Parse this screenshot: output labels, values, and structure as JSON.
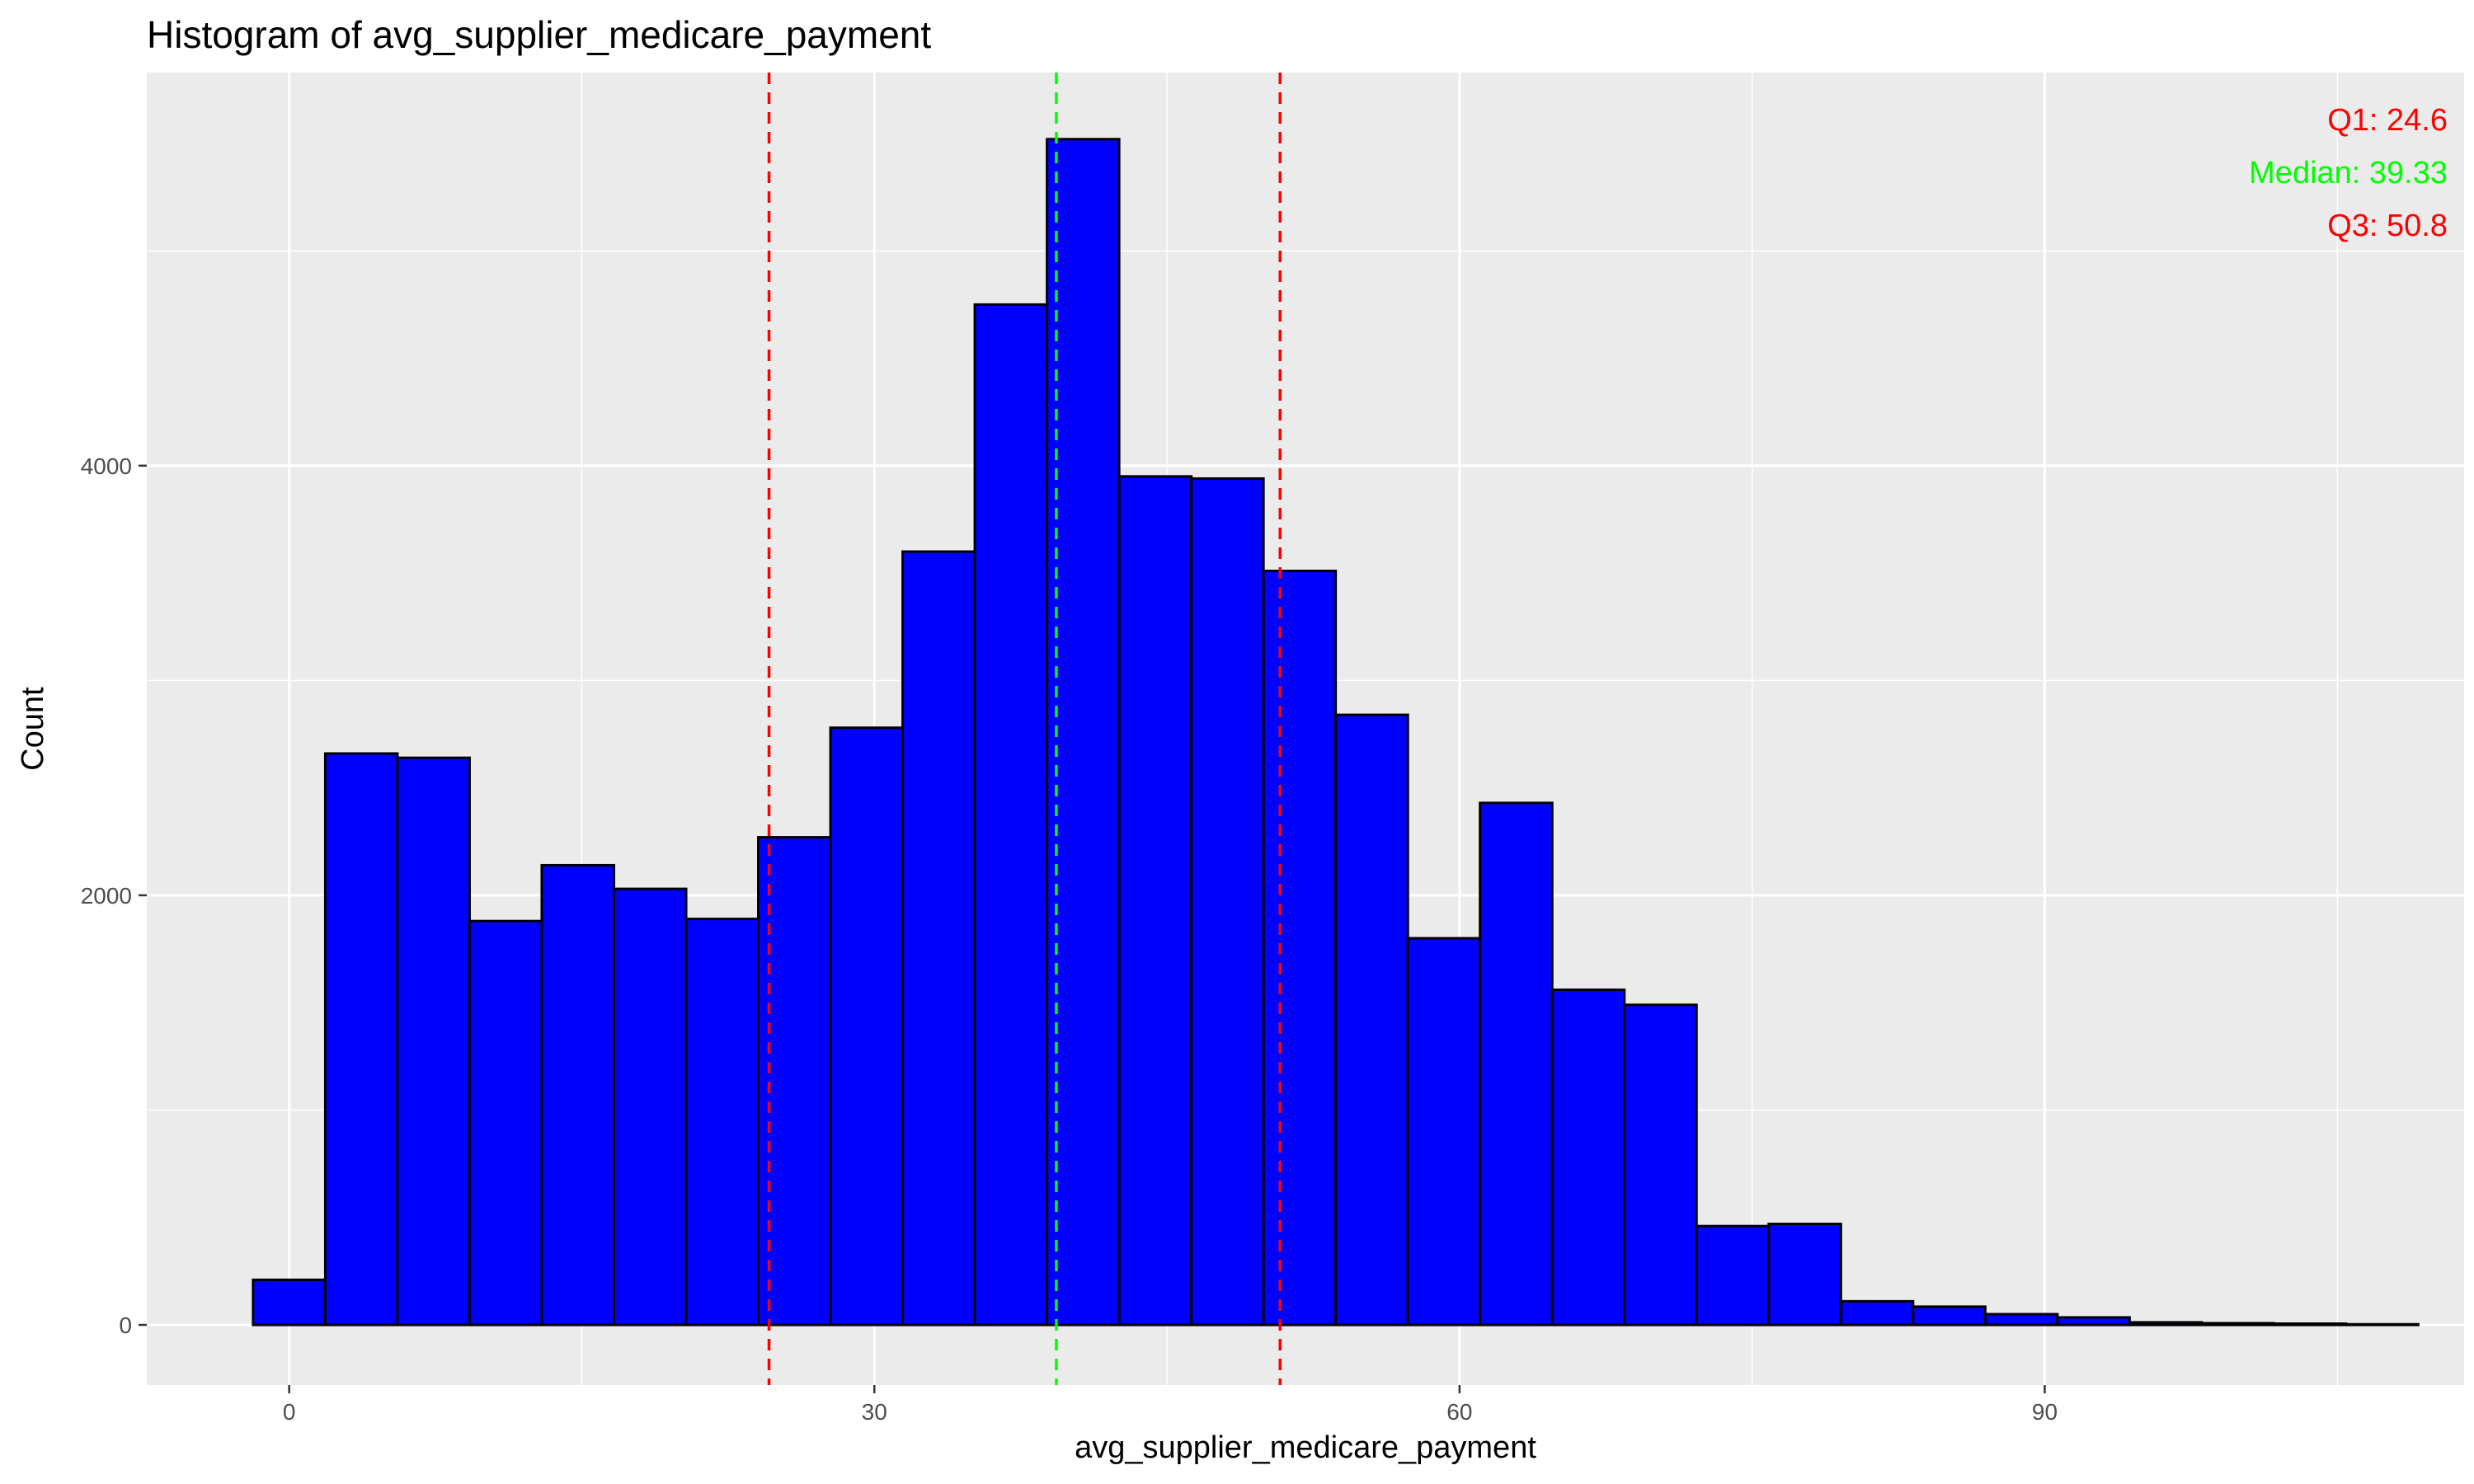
{
  "chart_data": {
    "type": "bar",
    "title": "Histogram of avg_supplier_medicare_payment",
    "xlabel": "avg_supplier_medicare_payment",
    "ylabel": "Count",
    "xlim": [
      -7.3,
      111.5
    ],
    "ylim": [
      -280,
      5830
    ],
    "x_ticks": [
      0,
      30,
      60,
      90
    ],
    "y_ticks": [
      0,
      2000,
      4000
    ],
    "x_tick_labels": [
      "0",
      "30",
      "60",
      "90"
    ],
    "y_tick_labels": [
      "0",
      "2000",
      "4000"
    ],
    "grid": true,
    "bin_width": 3.7,
    "bins": [
      {
        "x0": -1.85,
        "x1": 1.85,
        "count": 210
      },
      {
        "x0": 1.85,
        "x1": 5.55,
        "count": 2660
      },
      {
        "x0": 5.55,
        "x1": 9.25,
        "count": 2640
      },
      {
        "x0": 9.25,
        "x1": 12.95,
        "count": 1880
      },
      {
        "x0": 12.95,
        "x1": 16.65,
        "count": 2140
      },
      {
        "x0": 16.65,
        "x1": 20.35,
        "count": 2030
      },
      {
        "x0": 20.35,
        "x1": 24.05,
        "count": 1890
      },
      {
        "x0": 24.05,
        "x1": 27.75,
        "count": 2270
      },
      {
        "x0": 27.75,
        "x1": 31.45,
        "count": 2780
      },
      {
        "x0": 31.45,
        "x1": 35.15,
        "count": 3600
      },
      {
        "x0": 35.15,
        "x1": 38.85,
        "count": 4750
      },
      {
        "x0": 38.85,
        "x1": 42.55,
        "count": 5520
      },
      {
        "x0": 42.55,
        "x1": 46.25,
        "count": 3950
      },
      {
        "x0": 46.25,
        "x1": 49.95,
        "count": 3940
      },
      {
        "x0": 49.95,
        "x1": 53.65,
        "count": 3510
      },
      {
        "x0": 53.65,
        "x1": 57.35,
        "count": 2840
      },
      {
        "x0": 57.35,
        "x1": 61.05,
        "count": 1800
      },
      {
        "x0": 61.05,
        "x1": 64.75,
        "count": 2430
      },
      {
        "x0": 64.75,
        "x1": 68.45,
        "count": 1560
      },
      {
        "x0": 68.45,
        "x1": 72.15,
        "count": 1490
      },
      {
        "x0": 72.15,
        "x1": 75.85,
        "count": 460
      },
      {
        "x0": 75.85,
        "x1": 79.55,
        "count": 470
      },
      {
        "x0": 79.55,
        "x1": 83.25,
        "count": 110
      },
      {
        "x0": 83.25,
        "x1": 86.95,
        "count": 85
      },
      {
        "x0": 86.95,
        "x1": 90.65,
        "count": 50
      },
      {
        "x0": 90.65,
        "x1": 94.35,
        "count": 35
      },
      {
        "x0": 94.35,
        "x1": 98.05,
        "count": 12
      },
      {
        "x0": 98.05,
        "x1": 101.75,
        "count": 8
      },
      {
        "x0": 101.75,
        "x1": 105.45,
        "count": 6
      },
      {
        "x0": 105.45,
        "x1": 109.15,
        "count": 3
      }
    ],
    "reference_lines": [
      {
        "label": "Q1: 24.6",
        "value": 24.6,
        "color": "#ff0000",
        "style": "dashed"
      },
      {
        "label": "Median: 39.33",
        "value": 39.33,
        "color": "#00ff00",
        "style": "dashed"
      },
      {
        "label": "Q3: 50.8",
        "value": 50.8,
        "color": "#ff0000",
        "style": "dashed"
      }
    ],
    "bar_fill": "#0000ff",
    "bar_outline": "#000000",
    "panel_background": "#ebebeb",
    "grid_color": "#ffffff"
  }
}
